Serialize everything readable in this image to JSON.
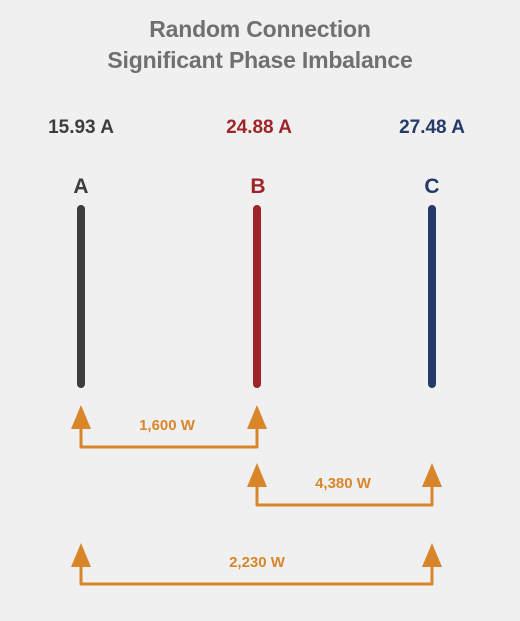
{
  "title_line1": "Random Connection",
  "title_line2": "Significant Phase Imbalance",
  "phases": [
    {
      "name": "A",
      "current": "15.93 A",
      "color": "#3d3d3d"
    },
    {
      "name": "B",
      "current": "24.88 A",
      "color": "#9e2429"
    },
    {
      "name": "C",
      "current": "27.48 A",
      "color": "#253a68"
    }
  ],
  "connections": [
    {
      "from": "A",
      "to": "B",
      "power": "1,600 W"
    },
    {
      "from": "B",
      "to": "C",
      "power": "4,380 W"
    },
    {
      "from": "A",
      "to": "C",
      "power": "2,230 W"
    }
  ],
  "arrow_color": "#d9862b"
}
